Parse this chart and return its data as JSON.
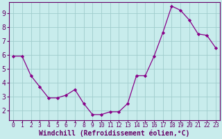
{
  "x": [
    0,
    1,
    2,
    3,
    4,
    5,
    6,
    7,
    8,
    9,
    10,
    11,
    12,
    13,
    14,
    15,
    16,
    17,
    18,
    19,
    20,
    21,
    22,
    23
  ],
  "y": [
    5.9,
    5.9,
    4.5,
    3.7,
    2.9,
    2.9,
    3.1,
    3.5,
    2.5,
    1.7,
    1.7,
    1.9,
    1.9,
    2.5,
    4.5,
    4.5,
    5.9,
    7.6,
    9.5,
    9.2,
    8.5,
    7.5,
    7.4,
    6.5
  ],
  "title": "",
  "xlabel": "Windchill (Refroidissement éolien,°C)",
  "xlim": [
    -0.5,
    23.5
  ],
  "ylim": [
    1.3,
    9.8
  ],
  "line_color": "#880088",
  "marker": "D",
  "marker_size": 2.2,
  "bg_color": "#c8ecec",
  "grid_color": "#a0cccc",
  "yticks": [
    2,
    3,
    4,
    5,
    6,
    7,
    8,
    9
  ],
  "xticks": [
    0,
    1,
    2,
    3,
    4,
    5,
    6,
    7,
    8,
    9,
    10,
    11,
    12,
    13,
    14,
    15,
    16,
    17,
    18,
    19,
    20,
    21,
    22,
    23
  ],
  "tick_color": "#660066",
  "ytick_fontsize": 7.0,
  "xtick_fontsize": 5.8,
  "xlabel_fontsize": 7.0,
  "border_color": "#660066",
  "line_width": 0.9
}
